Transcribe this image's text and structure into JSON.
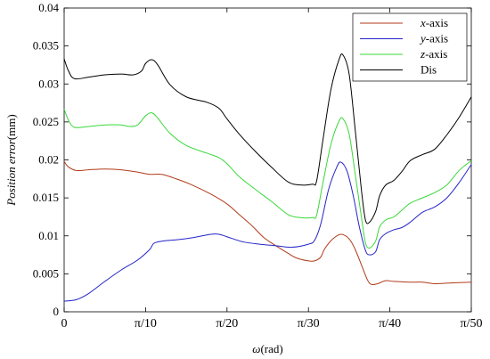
{
  "chart_data": {
    "type": "line",
    "xlabel_symbol": "ω",
    "xlabel_unit": "(rad)",
    "ylabel_main": "Position error",
    "ylabel_unit": "(mm)",
    "xlim": [
      0,
      1
    ],
    "ylim": [
      0,
      0.04
    ],
    "x_ticks": [
      {
        "pos": 0.0,
        "label": "0"
      },
      {
        "pos": 0.2,
        "label": "π/10"
      },
      {
        "pos": 0.4,
        "label": "π/20"
      },
      {
        "pos": 0.6,
        "label": "π/30"
      },
      {
        "pos": 0.8,
        "label": "π/40"
      },
      {
        "pos": 1.0,
        "label": "π/50"
      }
    ],
    "y_ticks": [
      {
        "value": 0,
        "label": "0"
      },
      {
        "value": 0.005,
        "label": "0.005"
      },
      {
        "value": 0.01,
        "label": "0.01"
      },
      {
        "value": 0.015,
        "label": "0.015"
      },
      {
        "value": 0.02,
        "label": "0.02"
      },
      {
        "value": 0.025,
        "label": "0.025"
      },
      {
        "value": 0.03,
        "label": "0.03"
      },
      {
        "value": 0.035,
        "label": "0.035"
      },
      {
        "value": 0.04,
        "label": "0.04"
      }
    ],
    "grid": false,
    "legend_position": "top-right",
    "series": [
      {
        "name": "x-axis",
        "name_italic": "x",
        "name_suffix": "-axis",
        "color": "#b03a1a",
        "points": [
          [
            0,
            0.0198
          ],
          [
            0.01,
            0.0191
          ],
          [
            0.03,
            0.0186
          ],
          [
            0.06,
            0.0187
          ],
          [
            0.1,
            0.0188
          ],
          [
            0.14,
            0.0187
          ],
          [
            0.18,
            0.0184
          ],
          [
            0.21,
            0.0181
          ],
          [
            0.24,
            0.0181
          ],
          [
            0.27,
            0.0176
          ],
          [
            0.31,
            0.0168
          ],
          [
            0.36,
            0.0155
          ],
          [
            0.4,
            0.0142
          ],
          [
            0.43,
            0.0128
          ],
          [
            0.46,
            0.0114
          ],
          [
            0.49,
            0.0098
          ],
          [
            0.52,
            0.0087
          ],
          [
            0.55,
            0.0077
          ],
          [
            0.57,
            0.0071
          ],
          [
            0.6,
            0.0067
          ],
          [
            0.615,
            0.0067
          ],
          [
            0.63,
            0.0072
          ],
          [
            0.64,
            0.0083
          ],
          [
            0.66,
            0.0096
          ],
          [
            0.68,
            0.0102
          ],
          [
            0.7,
            0.0096
          ],
          [
            0.715,
            0.0082
          ],
          [
            0.73,
            0.0062
          ],
          [
            0.745,
            0.0042
          ],
          [
            0.755,
            0.0036
          ],
          [
            0.77,
            0.0037
          ],
          [
            0.79,
            0.0041
          ],
          [
            0.81,
            0.004
          ],
          [
            0.85,
            0.0039
          ],
          [
            0.88,
            0.0039
          ],
          [
            0.91,
            0.0037
          ],
          [
            0.95,
            0.0038
          ],
          [
            1.0,
            0.0039
          ]
        ]
      },
      {
        "name": "y-axis",
        "name_italic": "y",
        "name_suffix": "-axis",
        "color": "#2424c8",
        "points": [
          [
            0,
            0.0014
          ],
          [
            0.03,
            0.0016
          ],
          [
            0.06,
            0.0024
          ],
          [
            0.1,
            0.004
          ],
          [
            0.14,
            0.0055
          ],
          [
            0.18,
            0.0068
          ],
          [
            0.21,
            0.0082
          ],
          [
            0.22,
            0.009
          ],
          [
            0.24,
            0.0093
          ],
          [
            0.28,
            0.0095
          ],
          [
            0.32,
            0.0098
          ],
          [
            0.36,
            0.0102
          ],
          [
            0.38,
            0.0102
          ],
          [
            0.41,
            0.0097
          ],
          [
            0.44,
            0.0092
          ],
          [
            0.48,
            0.0089
          ],
          [
            0.52,
            0.0087
          ],
          [
            0.56,
            0.0085
          ],
          [
            0.6,
            0.0089
          ],
          [
            0.615,
            0.0094
          ],
          [
            0.63,
            0.0115
          ],
          [
            0.65,
            0.0162
          ],
          [
            0.67,
            0.0191
          ],
          [
            0.68,
            0.0197
          ],
          [
            0.695,
            0.0185
          ],
          [
            0.71,
            0.0153
          ],
          [
            0.725,
            0.0112
          ],
          [
            0.74,
            0.0081
          ],
          [
            0.75,
            0.0075
          ],
          [
            0.765,
            0.0079
          ],
          [
            0.775,
            0.0095
          ],
          [
            0.79,
            0.0103
          ],
          [
            0.81,
            0.0108
          ],
          [
            0.83,
            0.0111
          ],
          [
            0.85,
            0.0118
          ],
          [
            0.88,
            0.0131
          ],
          [
            0.91,
            0.0138
          ],
          [
            0.94,
            0.015
          ],
          [
            0.97,
            0.017
          ],
          [
            1.0,
            0.0194
          ]
        ]
      },
      {
        "name": "z-axis",
        "name_italic": "z",
        "name_suffix": "-axis",
        "color": "#3ad83a",
        "points": [
          [
            0,
            0.0267
          ],
          [
            0.01,
            0.0253
          ],
          [
            0.025,
            0.0243
          ],
          [
            0.06,
            0.0244
          ],
          [
            0.1,
            0.0246
          ],
          [
            0.14,
            0.0246
          ],
          [
            0.16,
            0.0244
          ],
          [
            0.18,
            0.0246
          ],
          [
            0.2,
            0.0258
          ],
          [
            0.215,
            0.0262
          ],
          [
            0.23,
            0.0255
          ],
          [
            0.26,
            0.0235
          ],
          [
            0.3,
            0.0219
          ],
          [
            0.35,
            0.0209
          ],
          [
            0.38,
            0.0203
          ],
          [
            0.4,
            0.0195
          ],
          [
            0.43,
            0.0178
          ],
          [
            0.47,
            0.0161
          ],
          [
            0.51,
            0.0145
          ],
          [
            0.55,
            0.0128
          ],
          [
            0.58,
            0.0124
          ],
          [
            0.61,
            0.0124
          ],
          [
            0.62,
            0.0127
          ],
          [
            0.635,
            0.0168
          ],
          [
            0.655,
            0.022
          ],
          [
            0.675,
            0.0251
          ],
          [
            0.685,
            0.0254
          ],
          [
            0.7,
            0.0234
          ],
          [
            0.715,
            0.0181
          ],
          [
            0.73,
            0.0125
          ],
          [
            0.74,
            0.0091
          ],
          [
            0.75,
            0.0084
          ],
          [
            0.765,
            0.0093
          ],
          [
            0.775,
            0.0112
          ],
          [
            0.79,
            0.0121
          ],
          [
            0.81,
            0.0125
          ],
          [
            0.83,
            0.0134
          ],
          [
            0.85,
            0.0143
          ],
          [
            0.88,
            0.015
          ],
          [
            0.91,
            0.0157
          ],
          [
            0.94,
            0.0167
          ],
          [
            0.97,
            0.0186
          ],
          [
            1.0,
            0.0199
          ]
        ]
      },
      {
        "name": "Dis",
        "name_italic": "",
        "name_suffix": "Dis",
        "color": "#000000",
        "points": [
          [
            0,
            0.0333
          ],
          [
            0.01,
            0.0318
          ],
          [
            0.025,
            0.0307
          ],
          [
            0.06,
            0.0309
          ],
          [
            0.1,
            0.0312
          ],
          [
            0.14,
            0.0313
          ],
          [
            0.17,
            0.0312
          ],
          [
            0.19,
            0.0317
          ],
          [
            0.2,
            0.0327
          ],
          [
            0.215,
            0.0332
          ],
          [
            0.23,
            0.0325
          ],
          [
            0.26,
            0.0299
          ],
          [
            0.3,
            0.0283
          ],
          [
            0.35,
            0.0276
          ],
          [
            0.38,
            0.0268
          ],
          [
            0.4,
            0.0254
          ],
          [
            0.43,
            0.0234
          ],
          [
            0.47,
            0.0211
          ],
          [
            0.51,
            0.019
          ],
          [
            0.55,
            0.0171
          ],
          [
            0.58,
            0.0167
          ],
          [
            0.61,
            0.0168
          ],
          [
            0.62,
            0.0172
          ],
          [
            0.635,
            0.0224
          ],
          [
            0.655,
            0.0292
          ],
          [
            0.675,
            0.0332
          ],
          [
            0.685,
            0.0338
          ],
          [
            0.7,
            0.0313
          ],
          [
            0.715,
            0.0239
          ],
          [
            0.73,
            0.0161
          ],
          [
            0.74,
            0.0121
          ],
          [
            0.75,
            0.0118
          ],
          [
            0.765,
            0.0132
          ],
          [
            0.775,
            0.0153
          ],
          [
            0.79,
            0.0167
          ],
          [
            0.81,
            0.0173
          ],
          [
            0.83,
            0.0185
          ],
          [
            0.85,
            0.0199
          ],
          [
            0.88,
            0.0207
          ],
          [
            0.91,
            0.0214
          ],
          [
            0.94,
            0.0233
          ],
          [
            0.97,
            0.0256
          ],
          [
            1.0,
            0.0283
          ]
        ]
      }
    ]
  }
}
